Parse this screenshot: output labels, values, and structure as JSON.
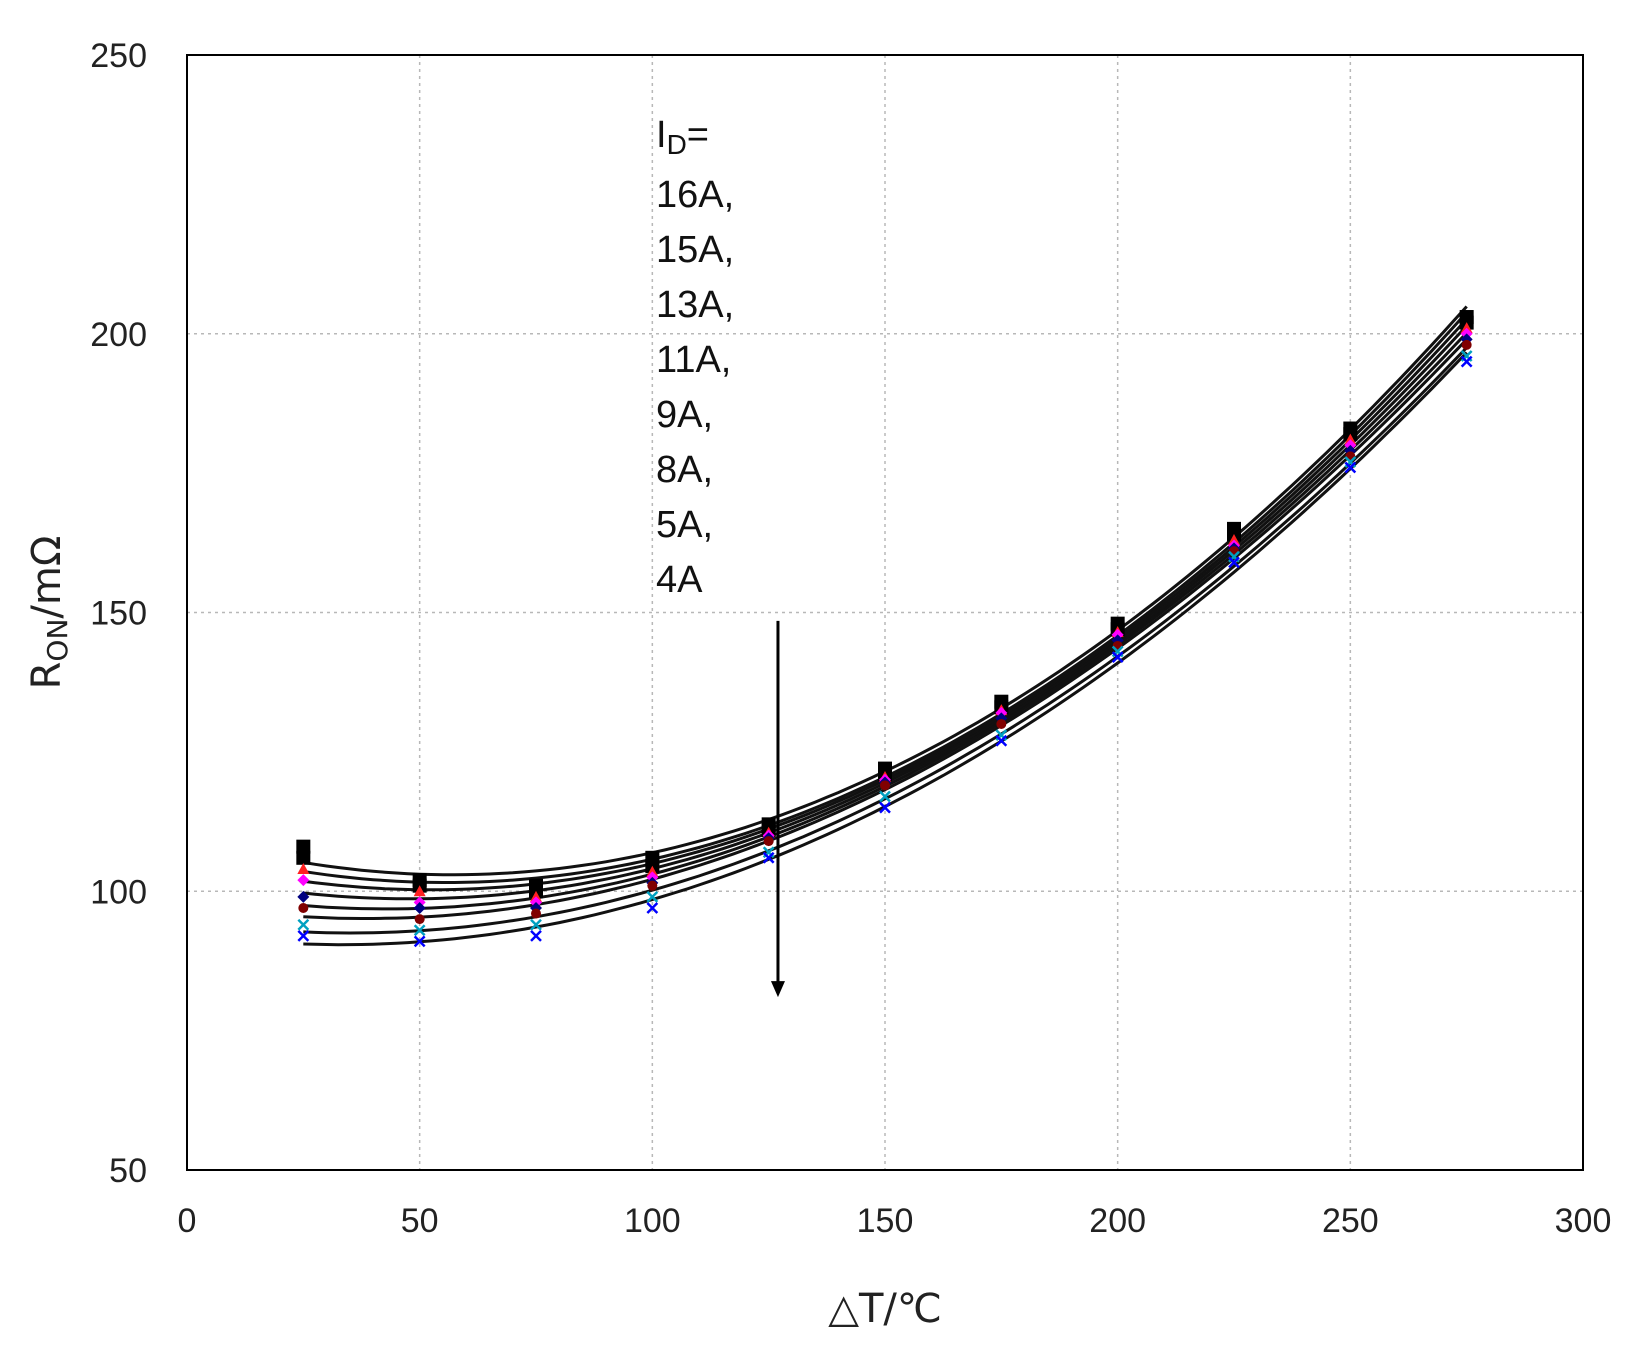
{
  "chart_data": {
    "type": "line",
    "title": "",
    "xlabel": "△T/℃",
    "ylabel_main": "R",
    "ylabel_sub": "ON",
    "ylabel_rest": "/mΩ",
    "xlim": [
      0,
      300
    ],
    "ylim": [
      50,
      250
    ],
    "xticks": [
      0,
      50,
      100,
      150,
      200,
      250,
      300
    ],
    "yticks": [
      50,
      100,
      150,
      200,
      250
    ],
    "xtick_labels": [
      "0",
      "50",
      "100",
      "150",
      "200",
      "250",
      "300"
    ],
    "ytick_labels": [
      "50",
      "100",
      "150",
      "200",
      "250"
    ],
    "grid": true,
    "annotation": {
      "heading_main": "I",
      "heading_sub": "D",
      "heading_rest": "=",
      "lines": [
        "16A,",
        "15A,",
        "13A,",
        "11A,",
        "9A,",
        "8A,",
        "5A,",
        "4A"
      ],
      "arrow": {
        "x": 127,
        "y_from": 148.5,
        "y_to": 81
      }
    },
    "x": [
      25,
      50,
      75,
      100,
      125,
      150,
      175,
      200,
      225,
      250,
      275
    ],
    "series": [
      {
        "values": [
          108,
          102,
          101,
          106,
          112,
          122,
          134,
          148,
          165,
          183,
          203
        ],
        "color": "#000000",
        "marker": "square"
      },
      {
        "values": [
          106,
          101,
          100,
          104.5,
          111,
          121,
          133,
          147,
          164,
          182,
          202
        ],
        "color": "#000000",
        "marker": "square"
      },
      {
        "values": [
          104,
          100,
          99,
          103.5,
          110.5,
          120.5,
          132.5,
          146.5,
          163,
          181,
          201
        ],
        "color": "#ff2020",
        "marker": "triangle"
      },
      {
        "values": [
          102,
          98,
          98,
          102.5,
          110,
          120,
          132,
          146,
          162,
          180,
          200
        ],
        "color": "#ff00ff",
        "marker": "diamond"
      },
      {
        "values": [
          99,
          97,
          97,
          101.5,
          109.5,
          119.5,
          131,
          145,
          161.5,
          179,
          199
        ],
        "color": "#000080",
        "marker": "diamond"
      },
      {
        "values": [
          97,
          95,
          96,
          101,
          109,
          119,
          130,
          144,
          161,
          178,
          198
        ],
        "color": "#800000",
        "marker": "circle"
      },
      {
        "values": [
          94,
          93,
          94,
          99,
          107,
          117,
          128,
          143,
          160,
          177,
          196
        ],
        "color": "#00a0c0",
        "marker": "cross"
      },
      {
        "values": [
          92,
          91,
          92,
          97,
          106,
          115,
          127,
          142,
          159,
          176,
          195
        ],
        "color": "#0000ff",
        "marker": "cross"
      }
    ]
  }
}
